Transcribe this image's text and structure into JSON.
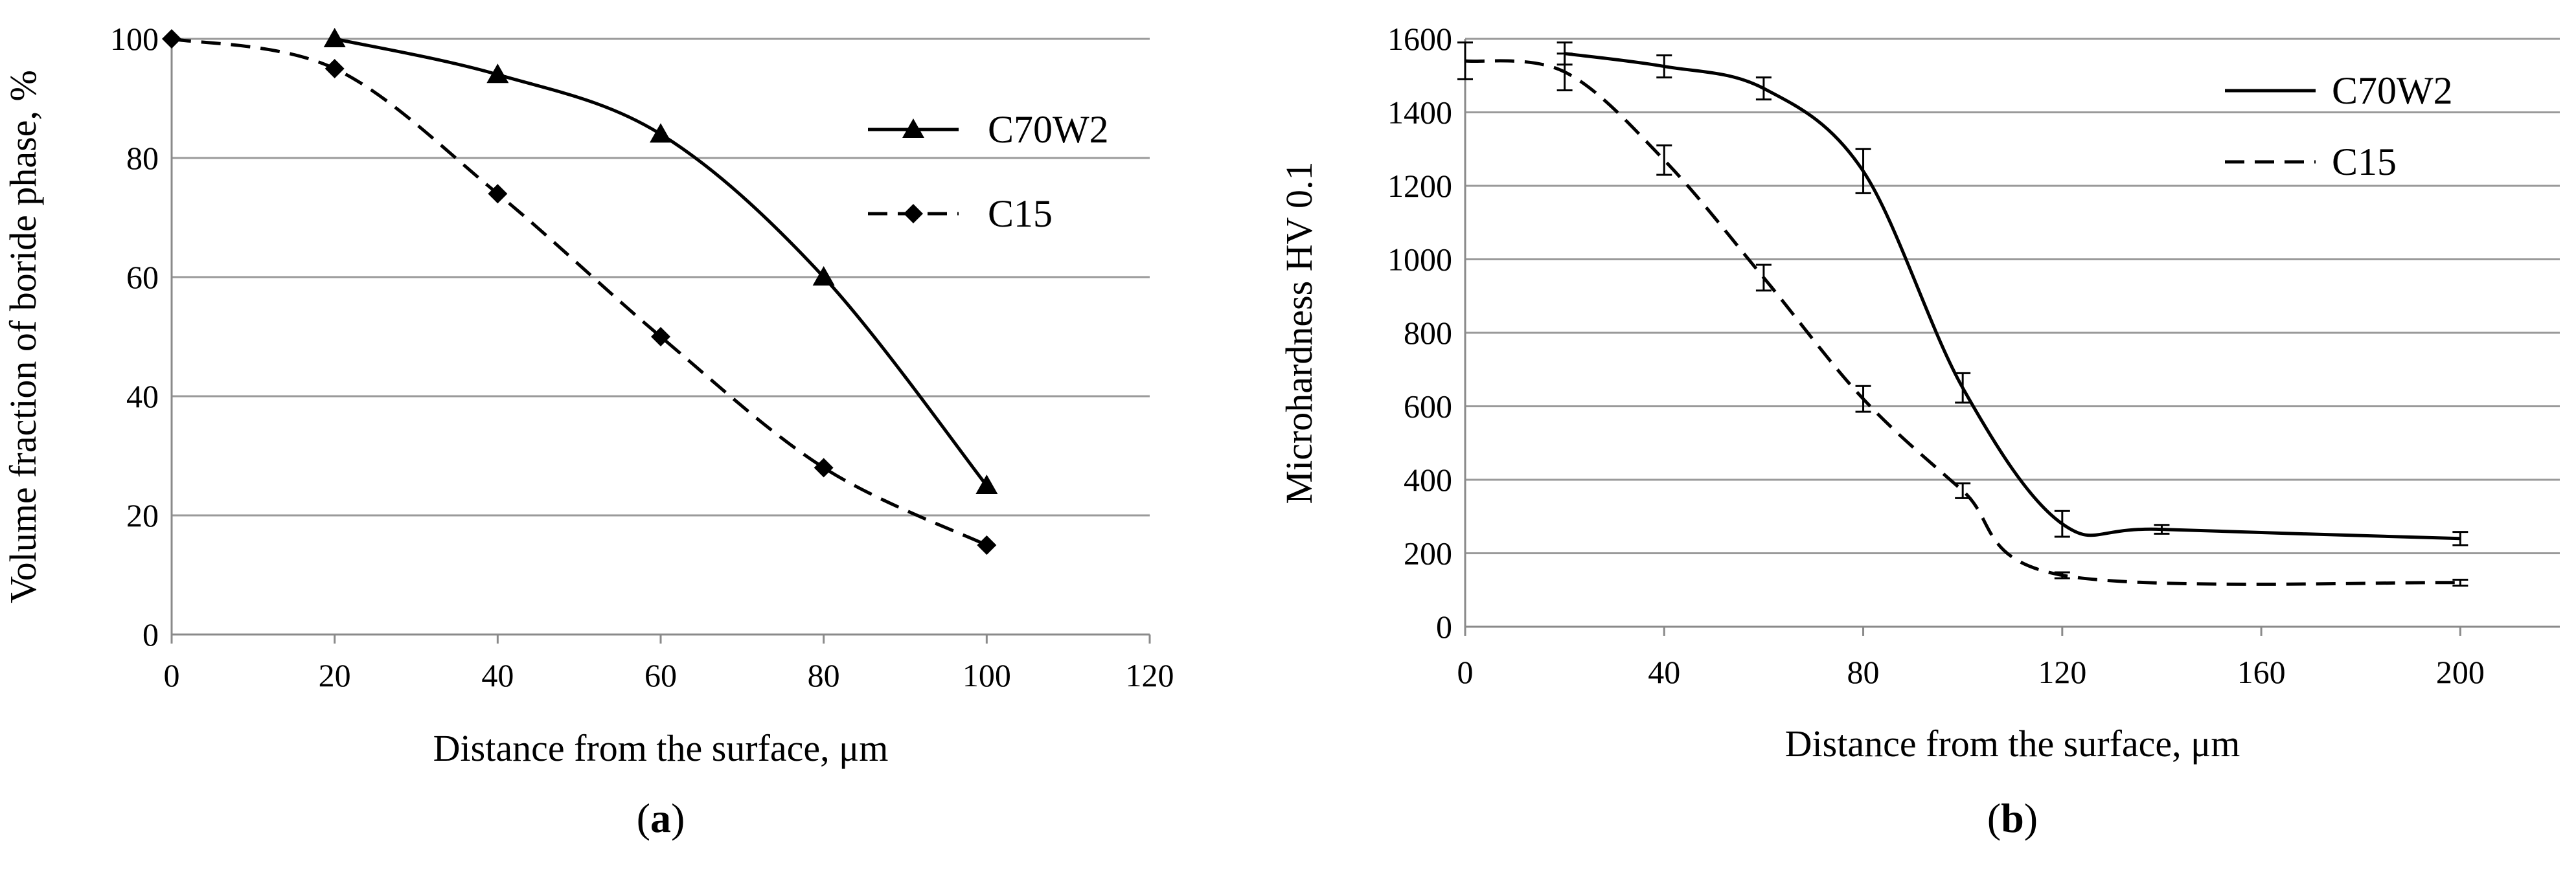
{
  "chart_data": [
    {
      "type": "line",
      "panel_label": "a",
      "xlabel": "Distance from the surface, μm",
      "ylabel": "Volume fraction of boride phase, %",
      "xlim": [
        0,
        120
      ],
      "ylim": [
        0,
        100
      ],
      "x_ticks": [
        0,
        20,
        40,
        60,
        80,
        100,
        120
      ],
      "y_ticks": [
        0,
        20,
        40,
        60,
        80,
        100
      ],
      "grid": "horizontal",
      "legend_position": "right",
      "series": [
        {
          "name": "C70W2",
          "style": "solid",
          "marker": "triangle",
          "x": [
            20,
            40,
            60,
            80,
            100
          ],
          "values": [
            100,
            94,
            84,
            60,
            25
          ]
        },
        {
          "name": "C15",
          "style": "dashed",
          "marker": "diamond",
          "x": [
            0,
            20,
            40,
            60,
            80,
            100
          ],
          "values": [
            100,
            95,
            74,
            50,
            28,
            15
          ]
        }
      ]
    },
    {
      "type": "line",
      "panel_label": "b",
      "xlabel": "Distance from the surface, μm",
      "ylabel": "Microhardness HV 0.1",
      "xlim": [
        0,
        220
      ],
      "ylim": [
        0,
        1600
      ],
      "x_ticks": [
        0,
        40,
        80,
        120,
        160,
        200
      ],
      "y_ticks": [
        0,
        200,
        400,
        600,
        800,
        1000,
        1200,
        1400,
        1600
      ],
      "grid": "horizontal",
      "legend_position": "top-right",
      "error_bars": true,
      "series": [
        {
          "name": "C70W2",
          "style": "solid",
          "marker": "none",
          "x": [
            20,
            40,
            60,
            80,
            100,
            120,
            140,
            200
          ],
          "values": [
            1560,
            1525,
            1465,
            1240,
            650,
            280,
            265,
            240
          ],
          "errors": [
            30,
            30,
            30,
            60,
            40,
            35,
            12,
            18
          ]
        },
        {
          "name": "C15",
          "style": "dashed",
          "marker": "none",
          "x": [
            0,
            20,
            40,
            60,
            80,
            100,
            120,
            200
          ],
          "values": [
            1540,
            1510,
            1270,
            950,
            620,
            370,
            140,
            120
          ],
          "errors": [
            50,
            50,
            40,
            35,
            35,
            20,
            8,
            8
          ]
        }
      ]
    }
  ]
}
